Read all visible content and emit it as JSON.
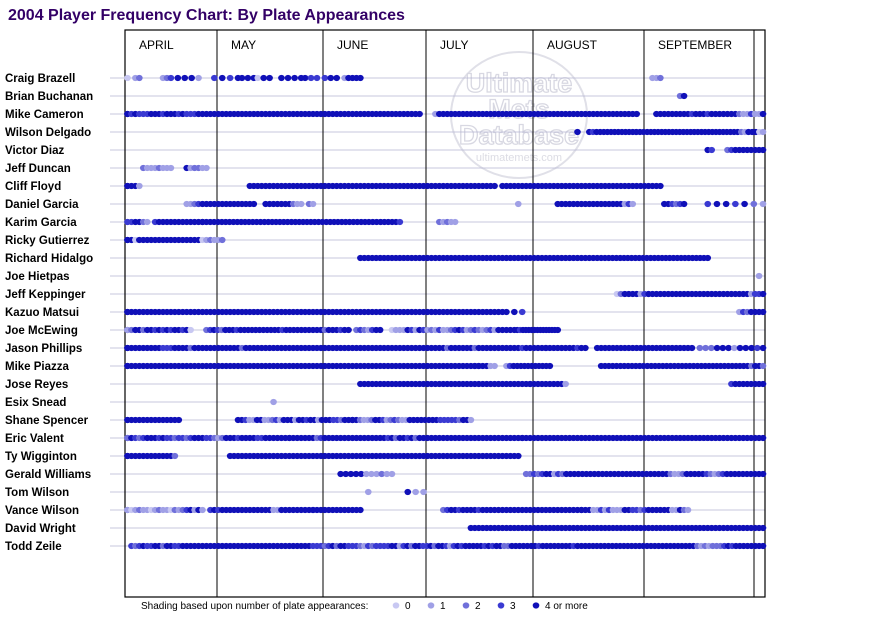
{
  "colors": {
    "title": "#330066",
    "pa0": "#c8c8f2",
    "pa1": "#a0a0e6",
    "pa2": "#7070da",
    "pa3": "#3a3ad2",
    "pa4": "#1010b8",
    "gridline": "#b4b4d2",
    "frame": "#000000"
  },
  "watermark": {
    "line1": "Ultimate",
    "line2": "Mets",
    "line3": "Database",
    "url": "ultimatemets.com"
  },
  "chart_data": {
    "type": "scatter",
    "title": "2004 Player Frequency Chart: By Plate Appearances",
    "months": [
      "APRIL",
      "MAY",
      "JUNE",
      "JULY",
      "AUGUST",
      "SEPTEMBER"
    ],
    "players": [
      "Craig Brazell",
      "Brian Buchanan",
      "Mike Cameron",
      "Wilson Delgado",
      "Victor Diaz",
      "Jeff Duncan",
      "Cliff Floyd",
      "Daniel Garcia",
      "Karim Garcia",
      "Ricky Gutierrez",
      "Richard Hidalgo",
      "Joe Hietpas",
      "Jeff Keppinger",
      "Kazuo Matsui",
      "Joe McEwing",
      "Jason Phillips",
      "Mike Piazza",
      "Jose Reyes",
      "Esix Snead",
      "Shane Spencer",
      "Eric Valent",
      "Ty Wigginton",
      "Gerald Williams",
      "Tom Wilson",
      "Vance Wilson",
      "David Wright",
      "Todd Zeile"
    ],
    "game_count": 162,
    "legend": {
      "prefix": "Shading based upon number of plate appearances:",
      "levels": [
        "0",
        "1",
        "2",
        "3",
        "4 or more"
      ]
    },
    "appearances": [
      [
        "1-3:0;3-4:1,2;10-11:1,2;12-19:3,4,4,4,1;23-29:3,4,3,4;30-33:4,4,4;34-37:0,4,4;40-45:4,4,4,4;46-49:4,3,3;51-54:3,4,4;56-60:1,4,4,4,4",
        "134-136:1,1,2"
      ],
      [
        "",
        "141-142:2,4"
      ],
      [
        "0-75:4,4,3,4,3,3,3,4,4,4,3,4,4,4,3,4,3,3,3,4,4,4,4,4,4,4,4,4,4,4,4,4,4,4,4,4,4,4,4,4,4,4,4,4,4,4,4,4,4,4,4,4,4,4,4,4,4,4,4,4,4,4,4,4,4,4,4,4,4,4,4,4,4,4,4,4;79-130:1,4,4,4,4,4,4,4,4,4,4,4,4,4,4,4,4,4,4,4,4,4,4,4,4,4,4,4,4,4,4,4,4,4,4,4,4,4,4,4,4,4,4,4,4,4,4,4,4,4,4,4;135-162:4,4,4,4,4,4,4,4,4,3,4,4,4,3,4,4,4,4,4,4,4,2,1,1,3,1,1,4"
      ],
      [
        "",
        "115-116:4;118-162:4,3,4,4,4,4,4,4,4,4,4,4,4,4,4,4,4,4,4,4,4,4,4,4,4,4,4,4,4,4,4,4,4,4,4,4,4,4,4,4,4,4,2,1,4,4,4,0,1"
      ],
      [
        "",
        "148-149:4,3;153-162:2,3,4,4,4,4,4,4,4,4"
      ],
      [
        "5-12:2,1,1,1,2,1,1,1;16-21:4,1,2,2,1,1"
      ],
      [
        "0-4:4,4,4,4,1;32-94:4,4,4,4,4,4,4,4,4,4,4,4,4,4,4,4,4,4,4,4,4,4,4,4,4,4,4,4,4,4,4,4,4,4,4,4,4,4,4,4,4,4,4,4,4,4,4,4,4,4,4,4,4,4,4,4,4,4,4,4,4,4,4;96-136:4,4,4,4,4,4,4,4,4,4,4,4,4,4,4,4,4,4,4,4,4,4,4,4,4,4,4,4,4,4,4,4,4,4,4,4,4,4,4,4,4"
      ],
      [
        "16-33:1,1,2,3,4,4,4,4,4,4,4,4,4,4,4,4,4,4;36-42:4,4,4,4,4,4,4;43-45:2,1,1;47-48:2,1",
        "100-101:1;110-129:4,4,4,4,4,4,4,4,4,4,4,4,4,4,4,4,4,1,3,1;137-142:4,4,3,2,3,4;148-162:3,4,4,3,4,2,1"
      ],
      [
        "0-6:1,3,3,4,4,2,1;8-20:3,4,4,4,4,4,4,4,4,4,4,4,4;20-70:4,4,4,4,4,4,4,4,4,4,4,4,4,4,4,4,4,4,4,4,4,4,4,4,4,4,4,4,4,4,4,4,4,4,4,4,4,4,4,4,4,4,4,4,4,4,4,4,4,4,4,3",
        "80-84:2,1,2,1,1"
      ],
      [
        "0-19:4,4,4,0,4,4,4,4,4,4,4,4,4,4,4,4,4,4,4,4;20-25:0,1,2,1,1,2"
      ],
      [
        "60-120:4,4,4,4,4,4,4,4,4,4,4,4,4,4,4,4,4,4,4,4,4,4,4,4,4,4,4,4,4,4,4,4,4,4,4,4,4,4,4,4,4,4,4,4,4,4,4,4,4,4,4,4,4,4,4,4,4,4,4,4,4;121-148:4,4,4,4,4,4,4,4,4,4,4,4,4,4,4,4,4,4,4,4,4,4,4,4,4,4,4,4,4"
      ],
      [
        "",
        "161-162:1"
      ],
      [
        "",
        "125-133:0,2,4,4,4,4,1,3,1;133-162:4,4,4,4,4,4,4,4,4,4,4,4,4,4,4,4,4,4,4,4,4,4,4,4,4,4,1,3,3,4"
      ],
      [
        "0-97:4,4,4,4,4,4,4,4,4,4,4,4,4,4,4,4,4,4,4,4,4,4,4,4,4,4,4,4,4,4,4,4,4,4,4,4,4,4,4,4,4,4,4,4,4,4,4,4,4,4,4,4,4,4,4,4,4,4,4,4,4,4,4,4,4,4,4,4,4,4,4,4,4,4,4,4,4,4,4,4,4,4,4,4,4,4,4,4,4,4,4,4,4,4,4,4,4,4",
        "99-101:4,3;156-162:1,3,2,4,4,4,4"
      ],
      [
        "0-17:3,1,2,4,4,2,4,4,3,4,3,4,3,4,4,3,4,0;21-46:2,3,4,3,2,4,4,4,3,4,4,4,4,4,4,4,4,4,4,4,3,4,4,4,4,4,4;47-57:4,4,4,4,2,4,4,4,3,4,4;59-65:2,3,2,1,3,4,4",
        "68-98:0,1,1,1,4,3,1,4,3,1,2,1,3,1,1,2,3,4,3,1,2,3,2,1,2,3,1,4,4,4,4;99-110:4,4,3,4,4,4,4,4,4,4,4,4,4,4,4,4"
      ],
      [
        "0-77:4,4,4,4,4,4,4,4,4,4,3,3,3,4,4,4,4,2,4,4,4,4,4,4,4,4,4,4,4,4,2,4,4,4,4,4,4,4,4,4,4,4,4,4,4,4,4,4,4,4,4,4,4,4,4,4,4,4,4,4,4,4,4,4,4,4,4,4,4,4,4,4,4,4,4,4,4,4",
        "78-107:4,4,4,4,2,4,4,4,4,4,4,2,4,4,4,4,4,4,4,4,4,4,4,3,4,4,4,4,4,4;107-117:4,4,4,4,4,4,4,4,3,4,4;120-144:4,4,4,4,4,4,4,4,4,4,4,4,4,4,4,4,4,4,4,4,4,4,4,4,4;146-162:2,2,2,4,4,4,1,4,4,4,3,4"
      ],
      [
        "0-90:4,4,4,4,4,4,4,4,4,4,4,4,4,4,4,4,4,4,4,4,4,4,4,4,4,4,4,4,4,4,4,4,4,4,4,4,4,4,4,4,4,4,4,4,4,4,4,4,4,4,4,4,4,4,4,4,4,4,4,4,4,4,4,4,4,4,4,4,4,4,4,4,4,4,4,4,4,4,4,4,4,4,4,4,4,4,4,4,4,4,4",
        "89-94:4,4,4,4,1,1;97-108:1,3,4,4,4,4,4,4,4,4,4,4,4;121-162:4,4,4,4,4,4,4,4,4,4,4,4,4,4,4,4,4,4,4,4,4,4,4,4,4,4,4,4,4,4,4,4,4,4,4,4,4,4,4,2,4,4,2"
      ],
      [
        "60-103:4,4,4,4,4,4,4,4,4,4,4,4,4,4,4,4,4,4,4,4,4,4,4,4,4,4,4,4,4,4,4,4,4,4,4,4,4,4,4,4,4,4,4,4",
        "103-112:4,4,4,4,4,4,4,4,4,1;154-162:3,4,4,4,4,4,4,4,4"
      ],
      [
        "",
        "38:1"
      ],
      [
        "0-14:3,4,4,4,4,4,4,4,4,4,4,4,4,4,4;29-58:4,4,3,1,1,4,4,1,1,2,3,1,4,4,4,1,4,4,3,4,4,1,4,4,4,3,3,2,4,4,4;58-88:4,4,2,1,1,2,4,4,3,1,2,3,2,1,1,4,4,4,4,4,4,4,4,3,3,3,3,3,2,4,4,1"
      ],
      [
        "0-42:3,2,4,3,2,3,4,4,4,3,4,3,3,2,3,3,2,3,4,4,4,3,3,2,1,2,4,4,4,3,4,4,4,4,3,3,4,4,4,4,4,4,4;42-101:4,4,4,4,4,4,4,2,3,4,4,4,4,4,4,4,4,4,4,4,4,4,4,4,4,3,4,2,4,4,3,4,2,4,4,4,4,4,4,4,4,4,4,4,4,4,4,4,4,4,4,4,4,4,4,4,4,4,4,4",
        "101-162:4,4,4,4,4,4,4,4,4,4,4,4,4,4,4,4,4,4,4,4,4,4,4,4,4,4,4,4,4,4,4,4,4,4,4,4,4,4,4,4,4,4,4,4,4,4,4,4,4,4,4,4,4,4,4,4,4,4,4,4,4,4"
      ],
      [
        "0-13:4,4,4,4,4,4,4,4,4,4,4,4,4,2;27-100:4,4,4,4,4,4,4,4,4,4,4,4,4,4,4,4,4,4,4,4,4,4,4,4,4,4,4,4,4,4,4,4,4,4,4,4,4,4,4,4,4,4,4,4,4,4,4,4,4,4,4,4,4,4,4,4,4,4,4,4,4,4,4,4,4,4,4,4,4,4,4,4,4,4"
      ],
      [
        "55-68:4,4,4,4,4,1,1,1,2,1,1",
        "102-162:2,2,3,2,3,4,4,1,3,2,4,4,4,4,4,4,4,4,4,4,4,4,4,4,4,4,4,4,4,4,4,4,4,4,4,4,2,1,1,2,4,4,4,4,4,3,2,1,2,3,4,4,4,4,4,4,4,4,4,4"
      ],
      [
        "62:1;72:4;74-76:1,1"
      ],
      [
        "0-20:2,1,0,1,2,1,1,0,1,2,1,1,0,2,1,2,3,4,1,4,1;22-48:3,4,3,4,4,4,4,4,4,4,4,4,4,4,4,4,1,1,4,4,4,4,4,4,4,4,4;48-60:4,4,4,4,4,4,4,4,4,4,4,4,4",
        "81-116:2,3,4,4,3,4,4,4,4,3,4,4,4,4,4,4,4,4,4,4,4,4,4,4,4,4,4,4,4,4,4,4,4,4,4,4;116-143:4,4,4,1,1,3,1,3,1,1,1,4,4,3,3,2,3,4,4,4,4,4,4,1,1,4,2,1"
      ],
      [
        "",
        "88-162:4,4,4,4,4,4,4,4,4,4,4,4,4,4,4,4,4,4,4,4,4,4,4,4,4,4,4,4,4,4,4,4,4,4,4,4,4,4,4,4,4,4,4,4,4,4,4,4,4,4,4,4,4,4,4,4,4,4,4,4,4,4,4,4,4,4,4,4,4,4,4,4,4,4,4"
      ],
      [
        "2-70:3,2,3,4,3,3,4,4,2,4,4,3,3,4,4,4,4,4,4,4,4,4,4,4,4,4,4,4,4,4,4,4,4,4,4,4,4,4,4,4,4,4,4,4,4,4,3,3,3,2,3,4,2,4,4,3,3,3,2,1,3,2,3,3,3,3,4,4,1",
        "70-162:1,3,4,2,4,4,3,3,4,2,4,4,3,1,3,4,3,4,4,4,4,4,3,4,3,4,4,2,2,4,4,4,4,4,4,4,3,4,4,4,4,4,4,4,4,3,4,4,4,4,4,4,4,4,4,4,4,4,4,4,4,4,4,4,4,4,4,4,4,4,4,4,4,4,4,4,4,2,1,2,1,2,2,2,3,4,3,4,4,4,4,4,4,4,4"
      ]
    ]
  }
}
